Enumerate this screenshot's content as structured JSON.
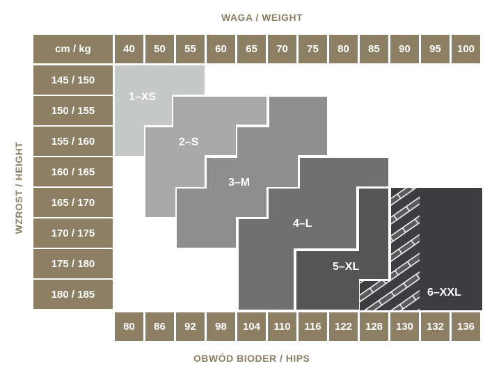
{
  "titles": {
    "weight": "WAGA / WEIGHT",
    "height": "WZROST / HEIGHT",
    "hips": "OBWÓD BIODER / HIPS"
  },
  "corner_label": "cm / kg",
  "weights": [
    "40",
    "50",
    "55",
    "60",
    "65",
    "70",
    "75",
    "80",
    "85",
    "90",
    "95",
    "100"
  ],
  "heights": [
    "145 / 150",
    "150 / 155",
    "155 / 160",
    "160 / 165",
    "165 / 170",
    "170 / 175",
    "175 / 180",
    "180 / 185"
  ],
  "hips": [
    "80",
    "86",
    "92",
    "98",
    "104",
    "110",
    "116",
    "122",
    "128",
    "130",
    "132",
    "136"
  ],
  "sizes": [
    {
      "label": "1–XS",
      "color": "#c6c8c7"
    },
    {
      "label": "2–S",
      "color": "#a9a9aa"
    },
    {
      "label": "3–M",
      "color": "#8e8e8f"
    },
    {
      "label": "4–L",
      "color": "#707071"
    },
    {
      "label": "5–XL",
      "color": "#555556"
    },
    {
      "label": "6–XXL",
      "color": "#3d3c40"
    }
  ],
  "colors": {
    "header_cell": "#8c7f63",
    "hatch": "#5a5a5c"
  }
}
